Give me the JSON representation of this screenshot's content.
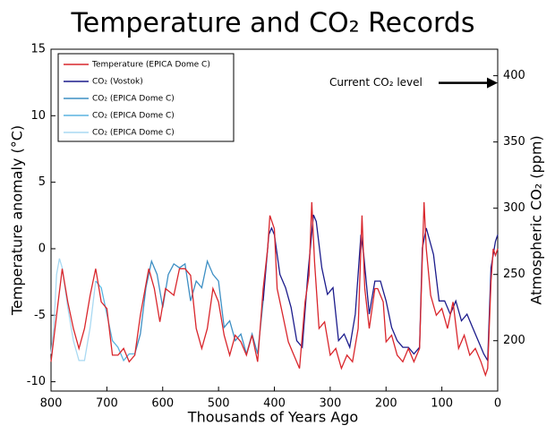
{
  "chart_data": {
    "type": "line",
    "title": "Temperature and CO₂ Records",
    "xlabel": "Thousands of Years Ago",
    "ylabel": "Temperature anomaly (°C)",
    "y2label": "Atmospheric CO₂ (ppm)",
    "xlim": [
      800,
      0
    ],
    "xticks": [
      800,
      700,
      600,
      500,
      400,
      300,
      200,
      100,
      0
    ],
    "ylim": [
      -10.7,
      15
    ],
    "yticks": [
      15,
      10,
      5,
      0,
      -5,
      -10
    ],
    "y2lim": [
      162,
      420
    ],
    "y2ticks": [
      400,
      350,
      300,
      250,
      200
    ],
    "legend": "upper left",
    "annotation": {
      "text": "Current CO₂ level",
      "x": 0,
      "y2": 400
    },
    "series": [
      {
        "name": "Temperature (EPICA Dome C)",
        "color": "#d9262c",
        "axis": "y",
        "x": [
          800,
          790,
          780,
          770,
          760,
          750,
          740,
          730,
          720,
          710,
          700,
          690,
          680,
          670,
          660,
          650,
          640,
          625,
          615,
          605,
          595,
          580,
          570,
          560,
          550,
          540,
          530,
          520,
          510,
          500,
          490,
          480,
          470,
          460,
          450,
          440,
          430,
          420,
          412,
          408,
          400,
          395,
          385,
          375,
          365,
          355,
          345,
          338,
          333,
          328,
          320,
          310,
          300,
          290,
          280,
          270,
          260,
          250,
          243,
          238,
          230,
          220,
          215,
          205,
          200,
          190,
          180,
          170,
          160,
          150,
          140,
          132,
          128,
          120,
          110,
          100,
          90,
          80,
          70,
          60,
          50,
          40,
          30,
          22,
          18,
          12,
          8,
          4,
          0
        ],
        "values": [
          -8.5,
          -5,
          -1.5,
          -4,
          -6,
          -7.5,
          -6,
          -3.5,
          -1.5,
          -4,
          -4.5,
          -8,
          -8,
          -7.5,
          -8.5,
          -8,
          -5,
          -1.5,
          -3,
          -5.5,
          -3,
          -3.5,
          -1.5,
          -1.5,
          -2,
          -6,
          -7.5,
          -6,
          -3,
          -4,
          -6.5,
          -8,
          -6.5,
          -7,
          -8,
          -6.5,
          -8.5,
          -3,
          0,
          2.5,
          1.5,
          -3,
          -5,
          -7,
          -8,
          -9,
          -4,
          -2,
          3.5,
          -1,
          -6,
          -5.5,
          -8,
          -7.5,
          -9,
          -8,
          -8.5,
          -6,
          2.5,
          -3,
          -6,
          -3,
          -3,
          -4,
          -7,
          -6.5,
          -8,
          -8.5,
          -7.5,
          -8.5,
          -7.5,
          3.5,
          0,
          -3.5,
          -5,
          -4.5,
          -6,
          -4,
          -7.5,
          -6.5,
          -8,
          -7.5,
          -8.5,
          -9.5,
          -9,
          -2.5,
          0,
          -0.5,
          0
        ]
      },
      {
        "name": "CO₂ (Vostok)",
        "color": "#1c1c8c",
        "axis": "y2",
        "x": [
          420,
          410,
          405,
          400,
          390,
          380,
          370,
          360,
          350,
          340,
          330,
          325,
          315,
          305,
          295,
          285,
          275,
          265,
          255,
          245,
          240,
          230,
          220,
          210,
          200,
          190,
          180,
          170,
          160,
          150,
          140,
          135,
          128,
          115,
          105,
          95,
          85,
          75,
          65,
          55,
          45,
          35,
          25,
          18,
          12,
          8,
          4,
          0
        ],
        "values": [
          230,
          280,
          285,
          280,
          250,
          240,
          225,
          200,
          195,
          250,
          295,
          290,
          255,
          235,
          240,
          200,
          205,
          195,
          220,
          280,
          265,
          220,
          245,
          245,
          230,
          210,
          200,
          195,
          195,
          190,
          195,
          270,
          285,
          265,
          230,
          230,
          220,
          230,
          215,
          220,
          210,
          200,
          190,
          185,
          255,
          265,
          275,
          280
        ]
      },
      {
        "name": "CO₂ (EPICA Dome C)",
        "color": "#3d8fc4",
        "axis": "y2",
        "x": [
          650,
          640,
          630,
          620,
          610,
          600,
          590,
          580,
          570,
          560,
          550,
          540,
          530,
          520,
          510,
          500,
          490,
          480,
          470,
          460,
          450,
          440,
          430,
          420
        ],
        "values": [
          190,
          205,
          240,
          260,
          250,
          225,
          250,
          258,
          255,
          258,
          230,
          245,
          240,
          260,
          250,
          245,
          210,
          215,
          200,
          205,
          190,
          205,
          190,
          230
        ]
      },
      {
        "name": "CO₂ (EPICA Dome C)",
        "color": "#5ab4e0",
        "axis": "y2",
        "x": [
          720,
          710,
          700,
          690,
          680,
          670,
          660,
          650
        ],
        "values": [
          245,
          240,
          220,
          200,
          195,
          185,
          190,
          190
        ]
      },
      {
        "name": "CO₂ (EPICA Dome C)",
        "color": "#a9d9f2",
        "axis": "y2",
        "x": [
          800,
          795,
          790,
          785,
          780,
          770,
          760,
          750,
          740,
          730,
          720
        ],
        "values": [
          190,
          210,
          250,
          262,
          255,
          225,
          200,
          185,
          185,
          210,
          245
        ]
      }
    ]
  }
}
